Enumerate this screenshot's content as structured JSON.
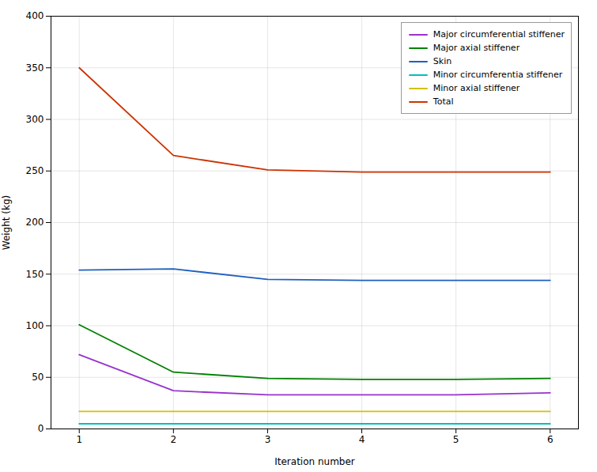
{
  "chart_data": {
    "type": "line",
    "x": [
      1,
      2,
      3,
      4,
      5,
      6
    ],
    "series": [
      {
        "name": "Major circumferential stiffener",
        "color": "#9932CC",
        "values": [
          72,
          37,
          33,
          33,
          33,
          35
        ]
      },
      {
        "name": "Major axial stiffener",
        "color": "#008000",
        "values": [
          101,
          55,
          49,
          48,
          48,
          49
        ]
      },
      {
        "name": "Skin",
        "color": "#1E5FBF",
        "values": [
          154,
          155,
          145,
          144,
          144,
          144
        ]
      },
      {
        "name": "Minor circumferentia stiffener",
        "color": "#00BFBF",
        "values": [
          5,
          5,
          5,
          5,
          5,
          5
        ]
      },
      {
        "name": "Minor axial stiffener",
        "color": "#D4C000",
        "values": [
          17,
          17,
          17,
          17,
          17,
          17
        ]
      },
      {
        "name": "Total",
        "color": "#CC3300",
        "values": [
          350,
          265,
          251,
          249,
          249,
          249
        ]
      }
    ],
    "xlabel": "Iteration number",
    "ylabel": "Weight (kg)",
    "xlim": [
      0.7,
      6.3
    ],
    "xticks": [
      1,
      2,
      3,
      4,
      5,
      6
    ],
    "ylim": [
      0,
      400
    ],
    "yticks": [
      0,
      50,
      100,
      150,
      200,
      250,
      300,
      350,
      400
    ],
    "grid": true,
    "legend": "upper right"
  }
}
